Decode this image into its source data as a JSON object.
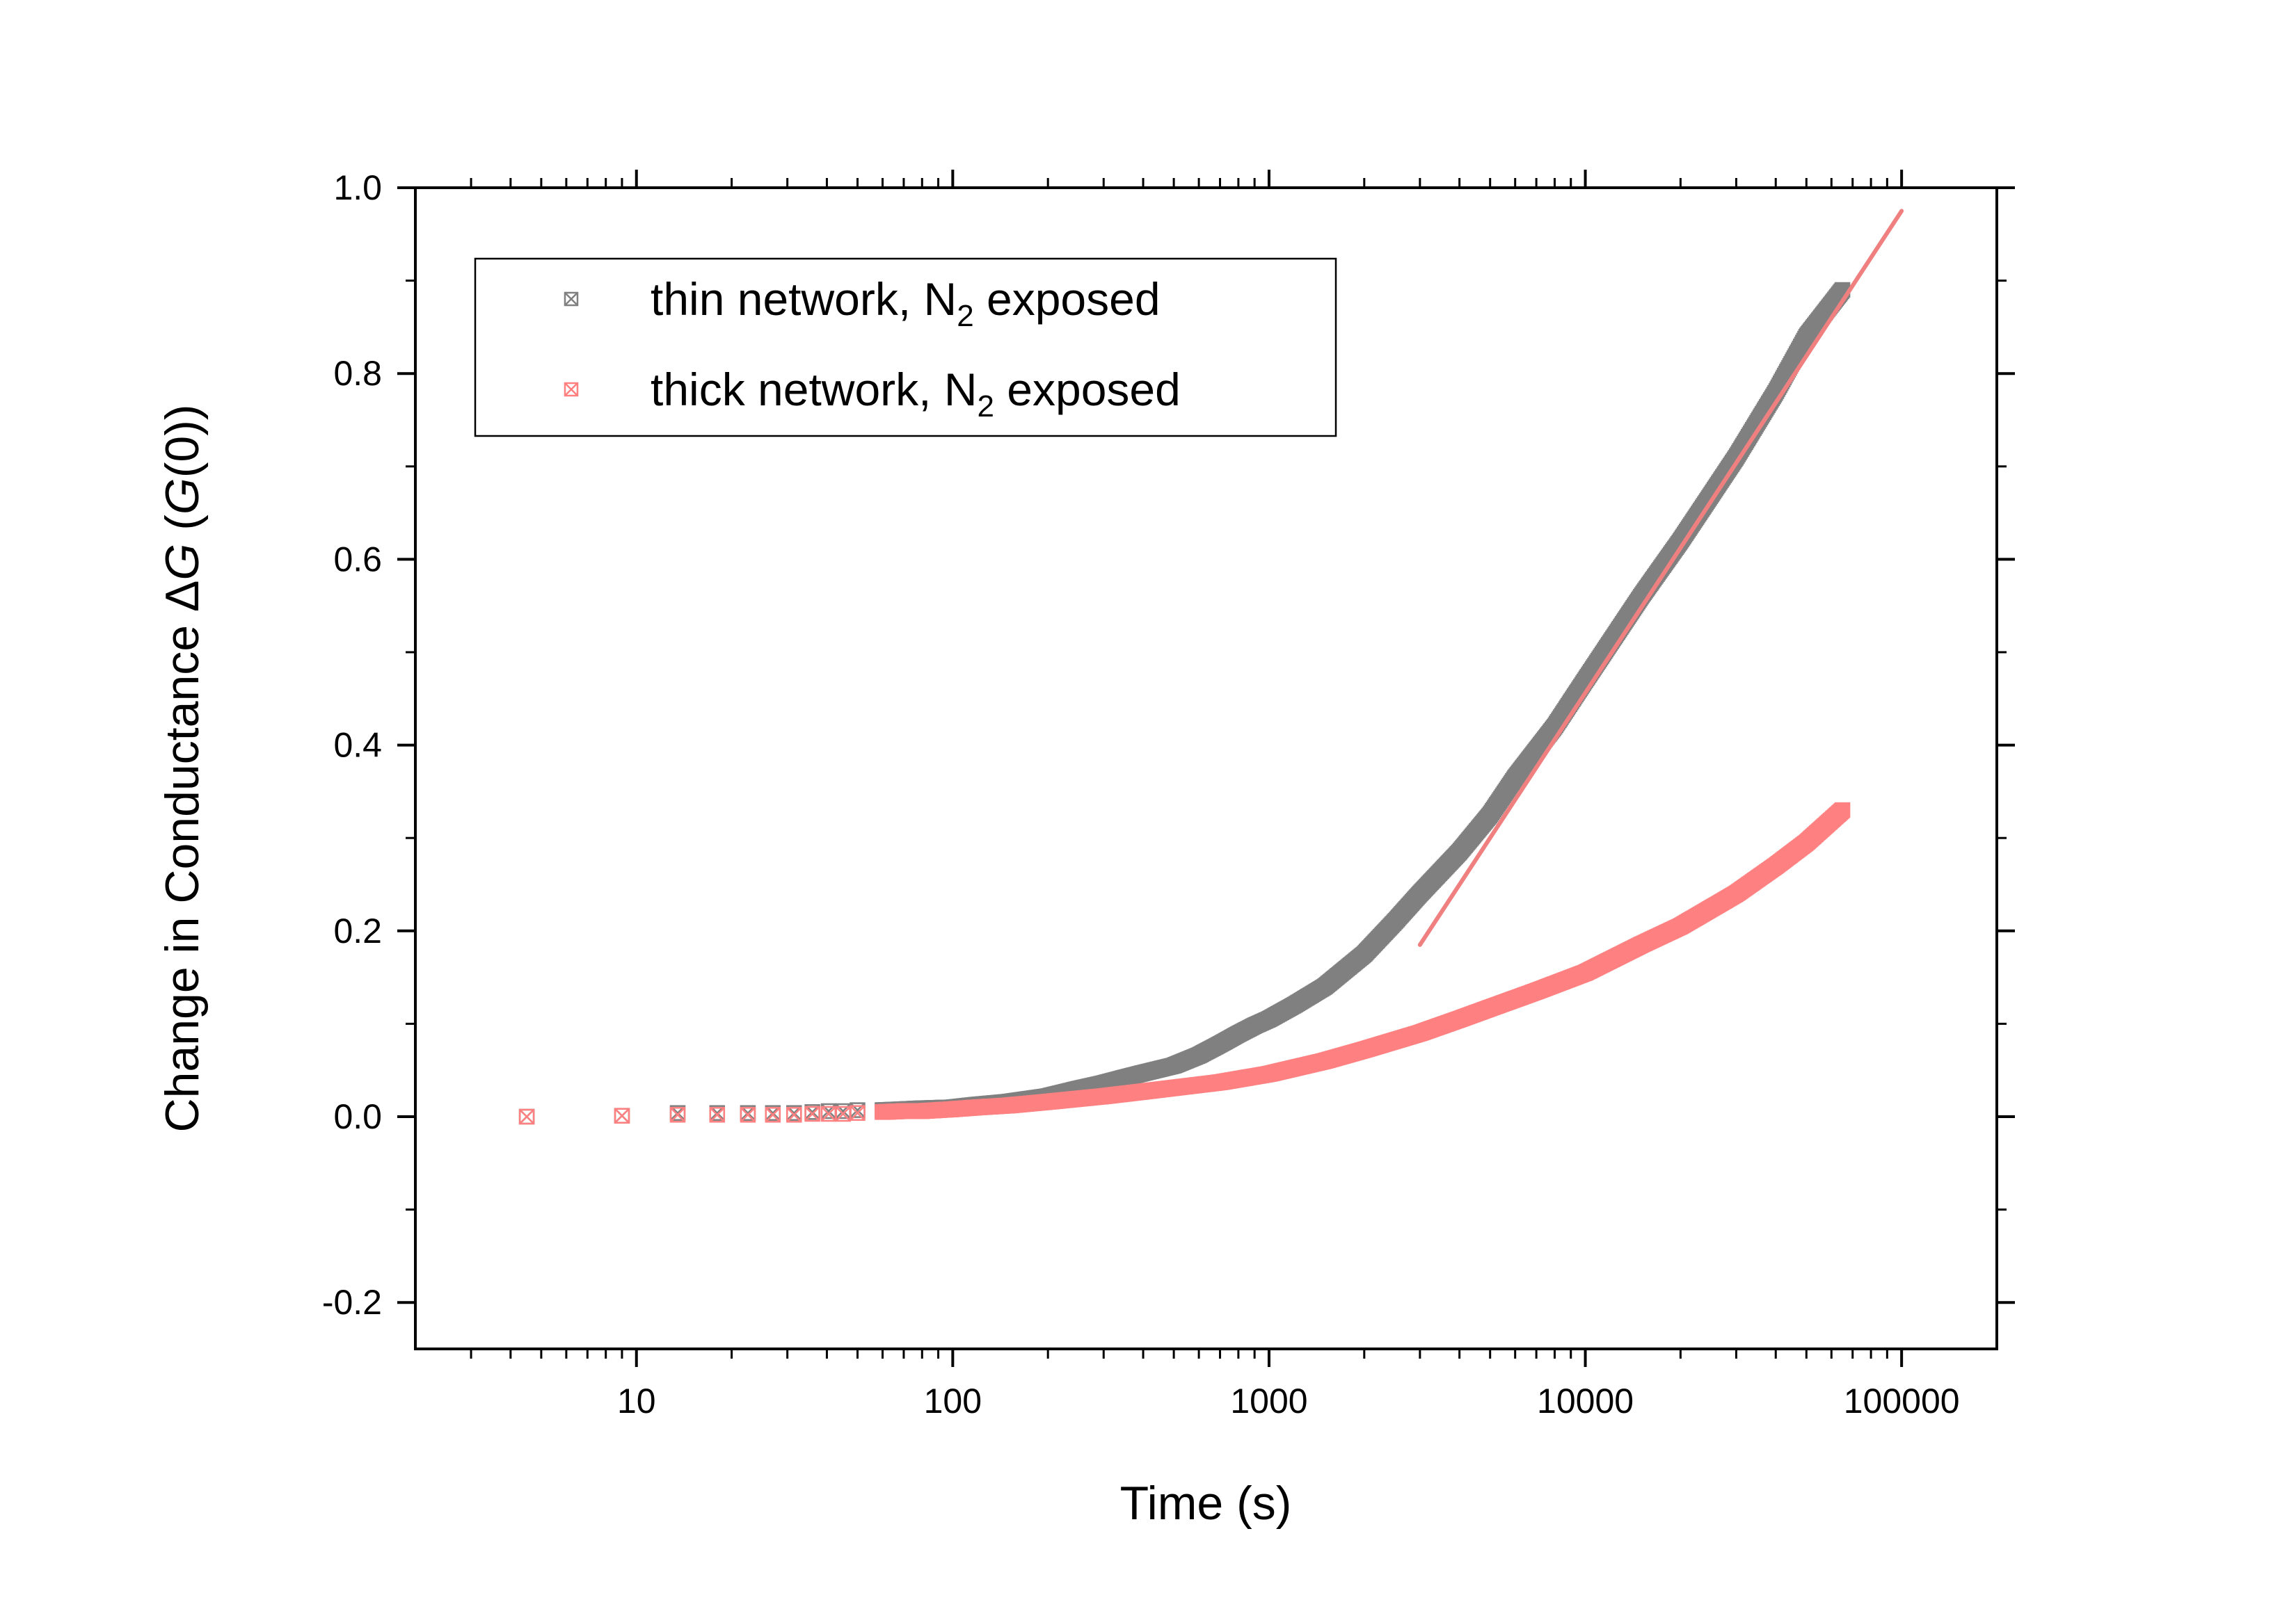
{
  "chart_data": {
    "type": "scatter",
    "xscale": "log",
    "xlim": [
      2,
      200000
    ],
    "ylim": [
      -0.25,
      1.0
    ],
    "xlabel": "Time (s)",
    "ylabel_parts": [
      "Change in Conductance ",
      "Δ",
      "G",
      " (",
      "G",
      "(0))"
    ],
    "x_ticks": [
      10,
      100,
      1000,
      10000,
      100000
    ],
    "x_tick_labels": [
      "10",
      "100",
      "1000",
      "10000",
      "100000"
    ],
    "y_ticks": [
      -0.2,
      0.0,
      0.2,
      0.4,
      0.6,
      0.8,
      1.0
    ],
    "y_tick_labels": [
      "-0.2",
      "0.0",
      "0.2",
      "0.4",
      "0.6",
      "0.8",
      "1.0"
    ],
    "grid": false,
    "legend_position": "top-left",
    "series": [
      {
        "name": "thin network, N2 exposed",
        "legend_label": {
          "pre": "thin network, N",
          "sub": "2",
          "post": " exposed"
        },
        "color": "#808080",
        "marker": "boxed-x",
        "x": [
          4.5,
          9,
          13.5,
          18,
          22.5,
          27,
          31.5,
          36,
          40.5,
          45,
          50,
          60,
          70,
          80,
          100,
          120,
          150,
          200,
          250,
          300,
          350,
          400,
          500,
          600,
          700,
          800,
          900,
          1000,
          1200,
          1500,
          2000,
          2500,
          3000,
          4000,
          5000,
          6000,
          8000,
          10000,
          15000,
          20000,
          30000,
          40000,
          50000,
          65000
        ],
        "y": [
          0.0,
          0.001,
          0.004,
          0.004,
          0.004,
          0.004,
          0.004,
          0.005,
          0.006,
          0.006,
          0.007,
          0.007,
          0.008,
          0.009,
          0.01,
          0.013,
          0.016,
          0.022,
          0.03,
          0.036,
          0.042,
          0.047,
          0.055,
          0.066,
          0.078,
          0.089,
          0.098,
          0.105,
          0.12,
          0.14,
          0.175,
          0.21,
          0.24,
          0.285,
          0.325,
          0.365,
          0.42,
          0.47,
          0.56,
          0.62,
          0.71,
          0.78,
          0.84,
          0.89
        ]
      },
      {
        "name": "thick network, N2 exposed",
        "legend_label": {
          "pre": "thick network, N",
          "sub": "2",
          "post": " exposed"
        },
        "color": "#ff8080",
        "marker": "boxed-x",
        "x": [
          4.5,
          9,
          13.5,
          18,
          22.5,
          27,
          31.5,
          36,
          40.5,
          45,
          50,
          60,
          70,
          80,
          100,
          120,
          150,
          200,
          300,
          400,
          500,
          700,
          1000,
          1500,
          2000,
          3000,
          4000,
          5000,
          7000,
          10000,
          15000,
          20000,
          30000,
          40000,
          50000,
          65000
        ],
        "y": [
          0.0,
          0.001,
          0.002,
          0.002,
          0.002,
          0.002,
          0.002,
          0.003,
          0.003,
          0.003,
          0.004,
          0.005,
          0.006,
          0.006,
          0.008,
          0.01,
          0.012,
          0.016,
          0.022,
          0.027,
          0.031,
          0.037,
          0.046,
          0.06,
          0.072,
          0.09,
          0.105,
          0.117,
          0.135,
          0.155,
          0.185,
          0.205,
          0.24,
          0.27,
          0.295,
          0.33
        ]
      }
    ],
    "fit_line": {
      "color": "#f08080",
      "x": [
        3000,
        100000
      ],
      "y": [
        0.185,
        0.975
      ]
    }
  }
}
